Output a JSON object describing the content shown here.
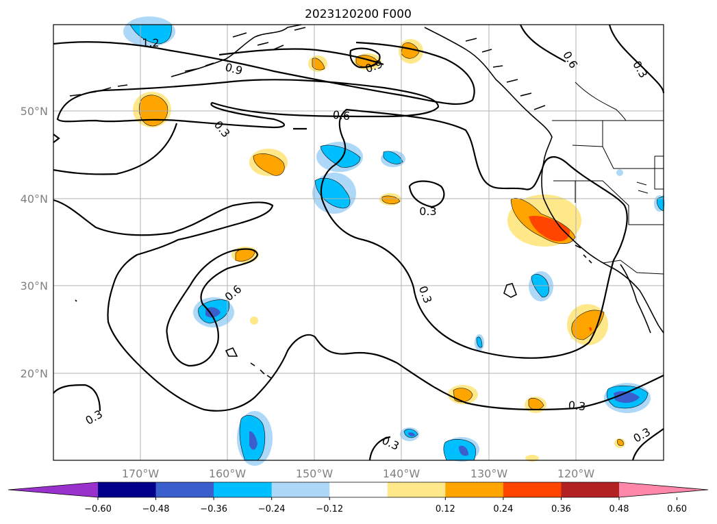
{
  "title": "2023120200 F000",
  "map": {
    "lon_labels": [
      "170°W",
      "160°W",
      "150°W",
      "140°W",
      "130°W",
      "120°W"
    ],
    "lat_labels": [
      "50°N",
      "40°N",
      "30°N",
      "20°N"
    ],
    "contour_labels": [
      "1.2",
      "0.9",
      "0.9",
      "0.6",
      "0.6",
      "0.3",
      "0.3",
      "0.3",
      "0.3",
      "0.3",
      "0.3",
      "0.3",
      "0.6"
    ]
  },
  "colorbar": {
    "ticks": [
      "−0.60",
      "−0.48",
      "−0.36",
      "−0.24",
      "−0.12",
      "0.12",
      "0.24",
      "0.36",
      "0.48",
      "0.60"
    ],
    "colors": [
      "#9932cc",
      "#00008b",
      "#3a5fcd",
      "#00bfff",
      "#add8f7",
      "#ffffff",
      "#ffe88a",
      "#ffa500",
      "#ff4500",
      "#b22222",
      "#ff88aa"
    ]
  }
}
